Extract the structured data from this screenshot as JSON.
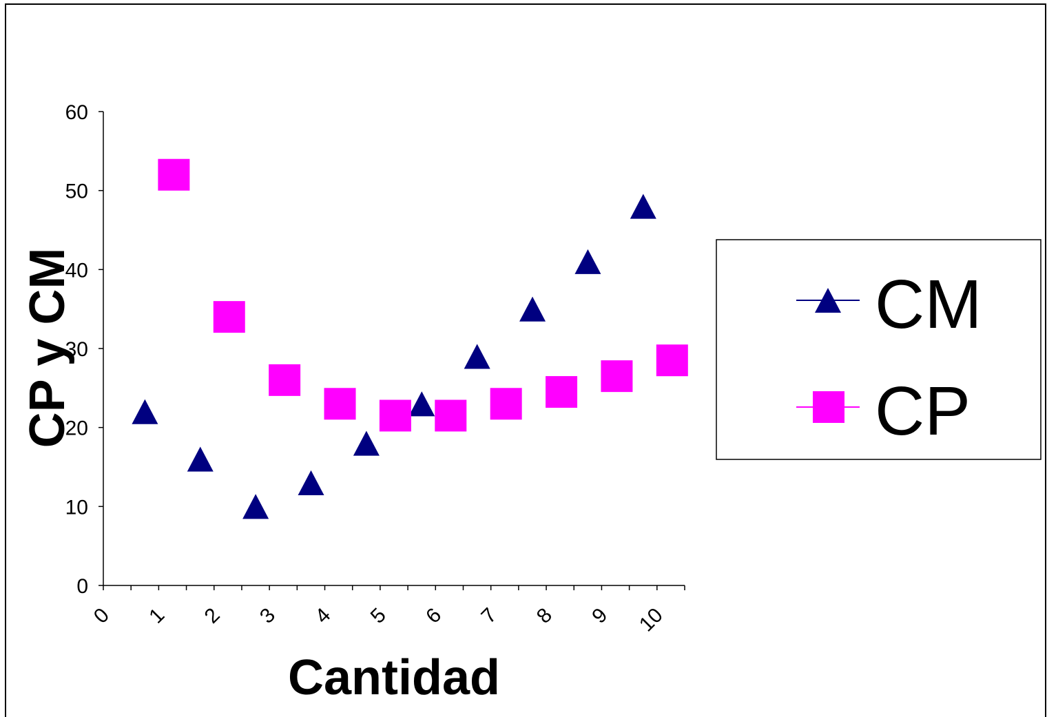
{
  "chart_data": {
    "type": "scatter",
    "xlabel": "Cantidad",
    "ylabel": "CP y CM",
    "xlim": [
      0,
      10.5
    ],
    "ylim": [
      0,
      60
    ],
    "x_categories": [
      "0",
      "1",
      "2",
      "3",
      "4",
      "5",
      "6",
      "7",
      "8",
      "9",
      "10"
    ],
    "y_ticks": [
      0,
      10,
      20,
      30,
      40,
      50,
      60
    ],
    "grid": false,
    "legend_position": "right",
    "series": [
      {
        "name": "CM",
        "marker": "triangle",
        "color": "#000080",
        "x": [
          1,
          2,
          3,
          4,
          5,
          6,
          7,
          8,
          9,
          10
        ],
        "y": [
          22,
          16,
          10,
          13,
          18,
          23,
          29,
          35,
          41,
          48
        ]
      },
      {
        "name": "CP",
        "marker": "square",
        "color": "#FF00FF",
        "x": [
          1,
          2,
          3,
          4,
          5,
          6,
          7,
          8,
          9,
          10
        ],
        "y": [
          52,
          34,
          26,
          23,
          21.5,
          21.5,
          23,
          24.5,
          26.5,
          28.5
        ]
      }
    ]
  }
}
